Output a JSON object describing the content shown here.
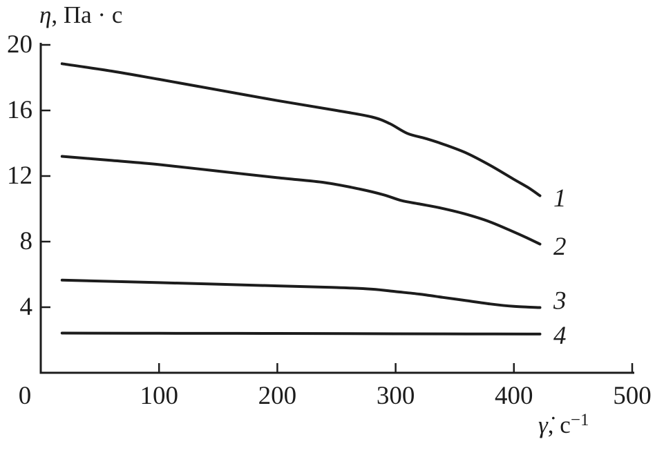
{
  "figure": {
    "y_axis_title": {
      "symbol": "η",
      "rest": ", Па · с"
    },
    "x_axis_title": {
      "symbol": "γ̇",
      "rest": ", с",
      "sup": "−1"
    }
  },
  "chart_data": {
    "type": "line",
    "title": "",
    "ylabel": "η, Па · с",
    "xlabel": "γ̇, с⁻¹",
    "xlim": [
      0,
      500
    ],
    "ylim": [
      0,
      20
    ],
    "xticks": [
      0,
      100,
      200,
      300,
      400,
      500
    ],
    "yticks": [
      4,
      8,
      12,
      16,
      20
    ],
    "grid": false,
    "legend_position": "right-of-curve-end",
    "line_color": "#1c1c1c",
    "background_color": "#ffffff",
    "series": [
      {
        "name": "1",
        "label": "1",
        "label_y": 10.7,
        "points": [
          [
            18,
            18.85
          ],
          [
            60,
            18.4
          ],
          [
            100,
            17.9
          ],
          [
            150,
            17.25
          ],
          [
            200,
            16.6
          ],
          [
            250,
            16.0
          ],
          [
            280,
            15.6
          ],
          [
            295,
            15.2
          ],
          [
            310,
            14.6
          ],
          [
            325,
            14.3
          ],
          [
            340,
            13.95
          ],
          [
            360,
            13.4
          ],
          [
            380,
            12.65
          ],
          [
            400,
            11.8
          ],
          [
            412,
            11.3
          ],
          [
            422,
            10.8
          ]
        ]
      },
      {
        "name": "2",
        "label": "2",
        "label_y": 7.75,
        "points": [
          [
            18,
            13.2
          ],
          [
            60,
            12.95
          ],
          [
            100,
            12.7
          ],
          [
            150,
            12.3
          ],
          [
            200,
            11.9
          ],
          [
            240,
            11.6
          ],
          [
            270,
            11.2
          ],
          [
            290,
            10.85
          ],
          [
            305,
            10.5
          ],
          [
            320,
            10.3
          ],
          [
            338,
            10.05
          ],
          [
            358,
            9.7
          ],
          [
            378,
            9.25
          ],
          [
            398,
            8.65
          ],
          [
            412,
            8.2
          ],
          [
            422,
            7.85
          ]
        ]
      },
      {
        "name": "3",
        "label": "3",
        "label_y": 4.45,
        "points": [
          [
            18,
            5.65
          ],
          [
            100,
            5.5
          ],
          [
            200,
            5.3
          ],
          [
            250,
            5.2
          ],
          [
            280,
            5.1
          ],
          [
            300,
            4.95
          ],
          [
            320,
            4.8
          ],
          [
            340,
            4.6
          ],
          [
            360,
            4.4
          ],
          [
            380,
            4.2
          ],
          [
            400,
            4.05
          ],
          [
            422,
            3.98
          ]
        ]
      },
      {
        "name": "4",
        "label": "4",
        "label_y": 2.32,
        "points": [
          [
            18,
            2.42
          ],
          [
            100,
            2.41
          ],
          [
            200,
            2.4
          ],
          [
            300,
            2.38
          ],
          [
            360,
            2.37
          ],
          [
            422,
            2.36
          ]
        ]
      }
    ]
  }
}
